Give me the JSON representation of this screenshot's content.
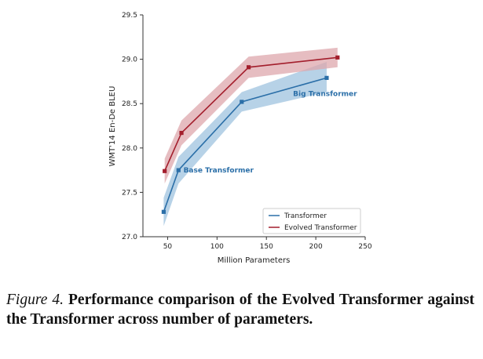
{
  "chart_data": {
    "type": "line",
    "xlabel": "Million Parameters",
    "ylabel": "WMT'14 En-De BLEU",
    "xlim": [
      25,
      250
    ],
    "ylim": [
      27.0,
      29.5
    ],
    "xticks": [
      50,
      100,
      150,
      200,
      250
    ],
    "yticks": [
      27.0,
      27.5,
      28.0,
      28.5,
      29.0,
      29.5
    ],
    "ytick_labels": [
      "27.0",
      "27.5",
      "28.0",
      "28.5",
      "29.0",
      "29.5"
    ],
    "grid": false,
    "legend_position": "lower-right",
    "series": [
      {
        "name": "Transformer",
        "color": "#2b6fa8",
        "fill": "#9fc3df",
        "x": [
          46,
          61,
          125,
          211
        ],
        "y": [
          27.28,
          27.75,
          28.52,
          28.79
        ],
        "lower": [
          27.12,
          27.6,
          28.41,
          28.63
        ],
        "upper": [
          27.44,
          27.9,
          28.63,
          28.97
        ]
      },
      {
        "name": "Evolved Transformer",
        "color": "#a31e2c",
        "fill": "#dda7ac",
        "x": [
          47,
          64,
          132,
          222
        ],
        "y": [
          27.74,
          28.17,
          28.91,
          29.02
        ],
        "lower": [
          27.6,
          28.03,
          28.79,
          28.91
        ],
        "upper": [
          27.88,
          28.31,
          29.03,
          29.13
        ]
      }
    ],
    "annotations": [
      {
        "text": "Base Transformer",
        "x": 66,
        "y": 27.75,
        "color": "#2b6fa8"
      },
      {
        "text": "Big Transformer",
        "x": 177,
        "y": 28.61,
        "color": "#2b6fa8"
      }
    ]
  },
  "caption": {
    "label": "Figure 4.",
    "text": "Performance comparison of the Evolved Transformer against the Transformer across number of parameters."
  }
}
